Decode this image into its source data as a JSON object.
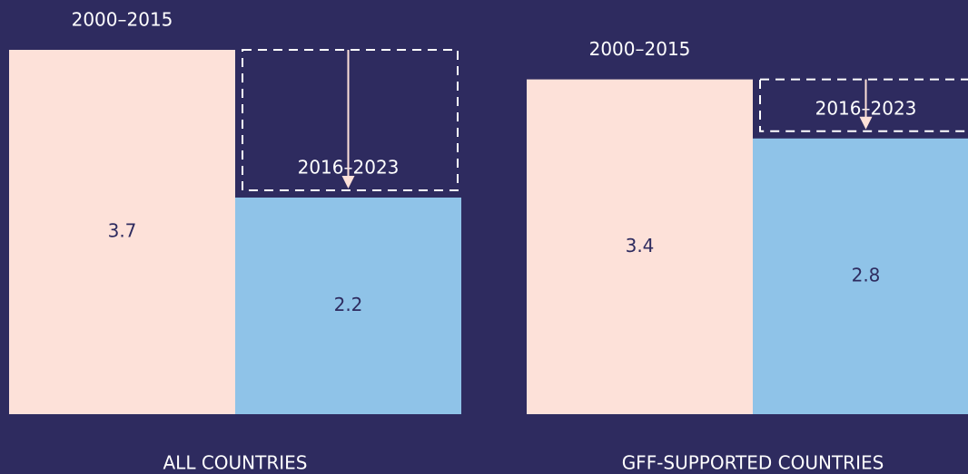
{
  "chart_data": {
    "type": "bar",
    "categories": [
      "ALL COUNTRIES",
      "GFF-SUPPORTED COUNTRIES"
    ],
    "series": [
      {
        "name": "2000–2015",
        "color": "#fde1d9",
        "values": [
          3.7,
          3.4
        ]
      },
      {
        "name": "2016–2023",
        "color": "#8fc3e8",
        "values": [
          2.2,
          2.8
        ]
      }
    ]
  }
}
